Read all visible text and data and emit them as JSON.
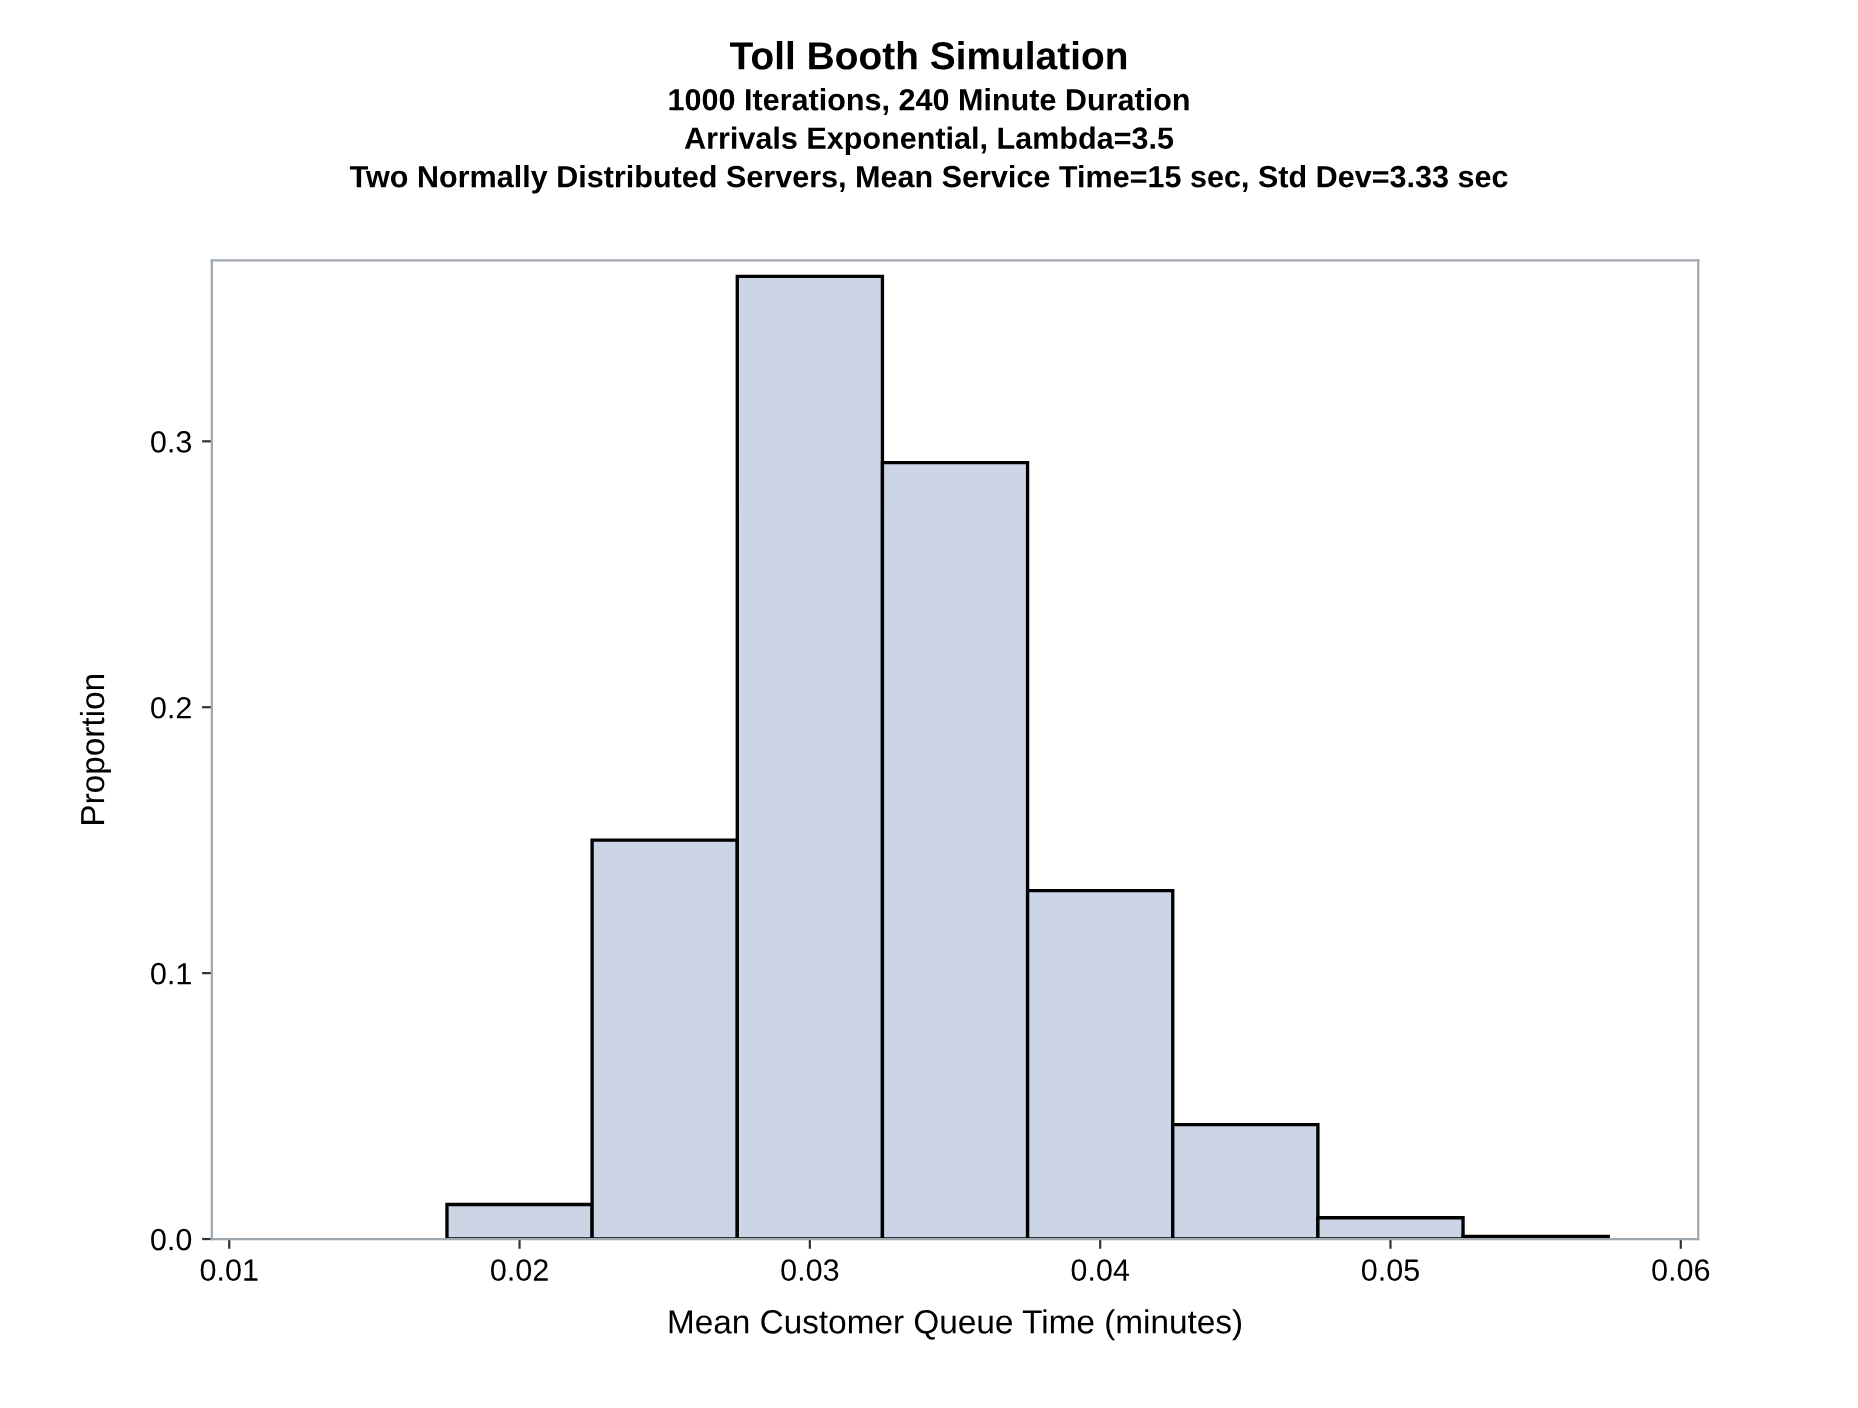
{
  "chart_data": {
    "type": "histogram",
    "title": "Toll Booth Simulation",
    "subtitle": "1000 Iterations, 240 Minute Duration\nArrivals Exponential, Lambda=3.5\nTwo Normally Distributed Servers, Mean Service Time=15 sec, Std Dev=3.33 sec",
    "xlabel": "Mean Customer Queue Time (minutes)",
    "ylabel": "Proportion",
    "bins": [
      0.0175,
      0.0225,
      0.0275,
      0.0325,
      0.0375,
      0.0425,
      0.0475,
      0.0525,
      0.0575
    ],
    "values": [
      0.013,
      0.15,
      0.362,
      0.292,
      0.131,
      0.043,
      0.008,
      0.001
    ],
    "color": "#cbd5e5",
    "xlim": [
      0.0094,
      0.0606
    ],
    "ylim": [
      0,
      0.368
    ],
    "xticks": [
      0.01,
      0.02,
      0.03,
      0.04,
      0.05,
      0.06
    ],
    "yticks": [
      {
        "value": 0,
        "label": "0.0"
      },
      0.1,
      0.2,
      0.3
    ],
    "grid": false
  }
}
